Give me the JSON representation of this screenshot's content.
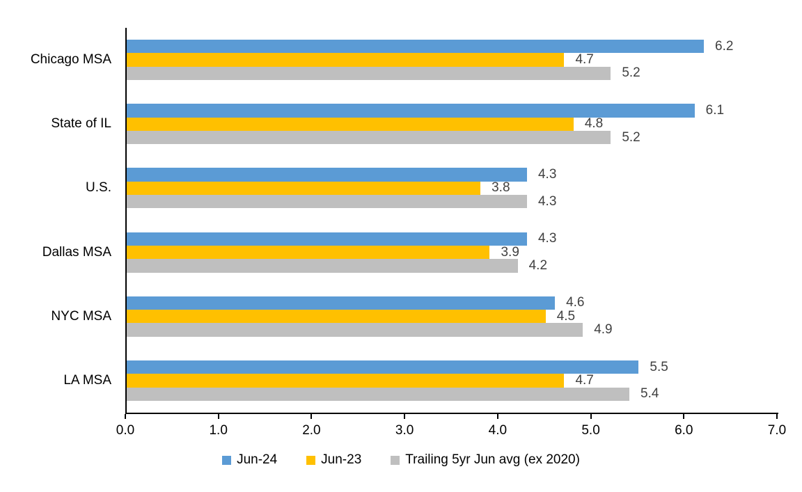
{
  "chart_data": {
    "type": "bar",
    "orientation": "horizontal",
    "title": "",
    "xlabel": "",
    "ylabel": "",
    "grid": false,
    "legend_position": "bottom",
    "data_labels": true,
    "xlim": [
      0,
      7
    ],
    "x_ticks": [
      "0.0",
      "1.0",
      "2.0",
      "3.0",
      "4.0",
      "5.0",
      "6.0",
      "7.0"
    ],
    "categories": [
      "Chicago MSA",
      "State of IL",
      "U.S.",
      "Dallas MSA",
      "NYC MSA",
      "LA MSA"
    ],
    "series": [
      {
        "name": "Jun-24",
        "color": "#5B9BD5",
        "values": [
          6.2,
          6.1,
          4.3,
          4.3,
          4.6,
          5.5
        ]
      },
      {
        "name": "Jun-23",
        "color": "#FFC000",
        "values": [
          4.7,
          4.8,
          3.8,
          3.9,
          4.5,
          4.7
        ]
      },
      {
        "name": "Trailing 5yr Jun avg (ex 2020)",
        "color": "#BFBFBF",
        "values": [
          5.2,
          5.2,
          4.3,
          4.2,
          4.9,
          5.4
        ]
      }
    ],
    "colors": {
      "data_label": "#404040",
      "axis": "#000000",
      "tick_label": "#000000",
      "category_label": "#000000",
      "legend_label": "#000000"
    }
  }
}
